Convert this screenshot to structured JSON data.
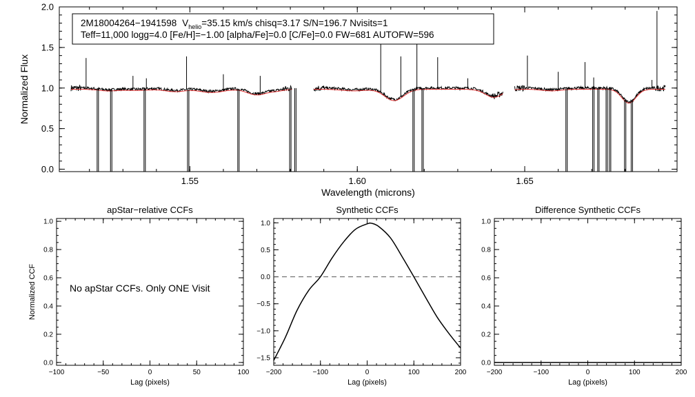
{
  "colors": {
    "axis": "#000000",
    "spectrum": "#000000",
    "model": "#e03030",
    "ccf": "#000000",
    "zero_line": "#555555"
  },
  "chart_data": [
    {
      "type": "line",
      "id": "spectrum",
      "xlabel": "Wavelength (microns)",
      "ylabel": "Normalized Flux",
      "xlim": [
        1.511,
        1.6955
      ],
      "ylim": [
        -0.03,
        2.0
      ],
      "x_ticks": [
        1.55,
        1.6,
        1.65
      ],
      "x_tick_labels": [
        "1.55",
        "1.60",
        "1.65"
      ],
      "y_ticks": [
        0.0,
        0.5,
        1.0,
        1.5,
        2.0
      ],
      "y_tick_labels": [
        "0.0",
        "0.5",
        "1.0",
        "1.5",
        "2.0"
      ],
      "info_box": {
        "line1": {
          "object": "2M18004264−1941598",
          "v": "V",
          "v_sub": "helio",
          "rest": "=35.15 km/s  chisq=3.17  S/N=196.7  Nvisits=1"
        },
        "line2": "Teff=11,000 logg=4.0 [Fe/H]=−1.00 [alpha/Fe]=0.0 [C/Fe]=0.0 FW=681 AUTOFW=596"
      },
      "chips": [
        [
          1.5145,
          1.5805
        ],
        [
          1.587,
          1.6435
        ],
        [
          1.647,
          1.692
        ]
      ],
      "absorption_features": [
        {
          "center": 1.5255,
          "depth": 0.02,
          "width": 0.004
        },
        {
          "center": 1.534,
          "depth": 0.015,
          "width": 0.005
        },
        {
          "center": 1.5455,
          "depth": 0.03,
          "width": 0.004
        },
        {
          "center": 1.5565,
          "depth": 0.04,
          "width": 0.005
        },
        {
          "center": 1.57,
          "depth": 0.07,
          "width": 0.004
        },
        {
          "center": 1.576,
          "depth": 0.02,
          "width": 0.003
        },
        {
          "center": 1.599,
          "depth": 0.02,
          "width": 0.005
        },
        {
          "center": 1.611,
          "depth": 0.14,
          "width": 0.004
        },
        {
          "center": 1.6405,
          "depth": 0.06,
          "width": 0.004
        },
        {
          "center": 1.641,
          "depth": 0.04,
          "width": 0.003
        },
        {
          "center": 1.658,
          "depth": 0.02,
          "width": 0.004
        },
        {
          "center": 1.6811,
          "depth": 0.17,
          "width": 0.003
        }
      ],
      "emission_spikes": [
        {
          "x": 1.519,
          "y": 1.37
        },
        {
          "x": 1.533,
          "y": 1.15
        },
        {
          "x": 1.537,
          "y": 1.12
        },
        {
          "x": 1.549,
          "y": 1.39
        },
        {
          "x": 1.56,
          "y": 1.17
        },
        {
          "x": 1.571,
          "y": 1.15
        },
        {
          "x": 1.607,
          "y": 1.61
        },
        {
          "x": 1.613,
          "y": 1.39
        },
        {
          "x": 1.6178,
          "y": 1.62
        },
        {
          "x": 1.624,
          "y": 1.38
        },
        {
          "x": 1.633,
          "y": 1.12
        },
        {
          "x": 1.6508,
          "y": 1.4
        },
        {
          "x": 1.66,
          "y": 1.2
        },
        {
          "x": 1.668,
          "y": 1.32
        },
        {
          "x": 1.6706,
          "y": 1.13
        },
        {
          "x": 1.688,
          "y": 1.1
        },
        {
          "x": 1.6895,
          "y": 1.95
        }
      ],
      "bad_pixel_drops": [
        1.5225,
        1.5265,
        1.5365,
        1.5495,
        1.5645,
        1.58,
        1.5815,
        1.6168,
        1.6195,
        1.6625,
        1.6705,
        1.672,
        1.6745,
        1.6755,
        1.68,
        1.682
      ]
    },
    {
      "type": "text",
      "id": "apstar",
      "title": "apStar−relative CCFs",
      "xlabel": "Lag (pixels)",
      "ylabel": "Normalized CCF",
      "xlim": [
        -100,
        100
      ],
      "ylim": [
        -0.02,
        1.02
      ],
      "x_ticks": [
        -100,
        -50,
        0,
        50,
        100
      ],
      "x_tick_labels": [
        "−100",
        "−50",
        "0",
        "50",
        "100"
      ],
      "y_ticks": [
        0.0,
        0.2,
        0.4,
        0.6,
        0.8,
        1.0
      ],
      "y_tick_labels": [
        "0.0",
        "0.2",
        "0.4",
        "0.6",
        "0.8",
        "1.0"
      ],
      "message": "No apStar CCFs.  Only ONE Visit"
    },
    {
      "type": "line",
      "id": "synthetic",
      "title": "Synthetic CCFs",
      "xlabel": "Lag (pixels)",
      "xlim": [
        -200,
        200
      ],
      "ylim": [
        -1.64,
        1.08
      ],
      "x_ticks": [
        -200,
        -100,
        0,
        100,
        200
      ],
      "x_tick_labels": [
        "−200",
        "−100",
        "0",
        "100",
        "200"
      ],
      "y_ticks": [
        -1.5,
        -1.0,
        -0.5,
        0.0,
        0.5,
        1.0
      ],
      "y_tick_labels": [
        "−1.5",
        "−1.0",
        "−0.5",
        "0.0",
        "0.5",
        "1.0"
      ],
      "series": [
        {
          "name": "ccf",
          "x": [
            -200,
            -175,
            -150,
            -125,
            -100,
            -75,
            -50,
            -25,
            0,
            10,
            25,
            50,
            75,
            100,
            125,
            150,
            175,
            200
          ],
          "y": [
            -1.55,
            -1.12,
            -0.62,
            -0.25,
            0.0,
            0.35,
            0.65,
            0.88,
            0.98,
            0.99,
            0.93,
            0.72,
            0.37,
            0.0,
            -0.38,
            -0.75,
            -1.05,
            -1.32
          ]
        }
      ],
      "zero_line": 0.0
    },
    {
      "type": "line",
      "id": "difference",
      "title": "Difference Synthetic CCFs",
      "xlabel": "Lag (pixels)",
      "xlim": [
        -200,
        200
      ],
      "ylim": [
        -0.02,
        1.02
      ],
      "x_ticks": [
        -200,
        -100,
        0,
        100,
        200
      ],
      "x_tick_labels": [
        "−200",
        "−100",
        "0",
        "100",
        "200"
      ],
      "y_ticks": [
        0.0,
        0.2,
        0.4,
        0.6,
        0.8,
        1.0
      ],
      "y_tick_labels": [
        "0.0",
        "0.2",
        "0.4",
        "0.6",
        "0.8",
        "1.0"
      ],
      "series": [
        {
          "name": "difference",
          "x": [
            -200,
            200
          ],
          "y": [
            0.0,
            0.0
          ]
        }
      ]
    }
  ]
}
